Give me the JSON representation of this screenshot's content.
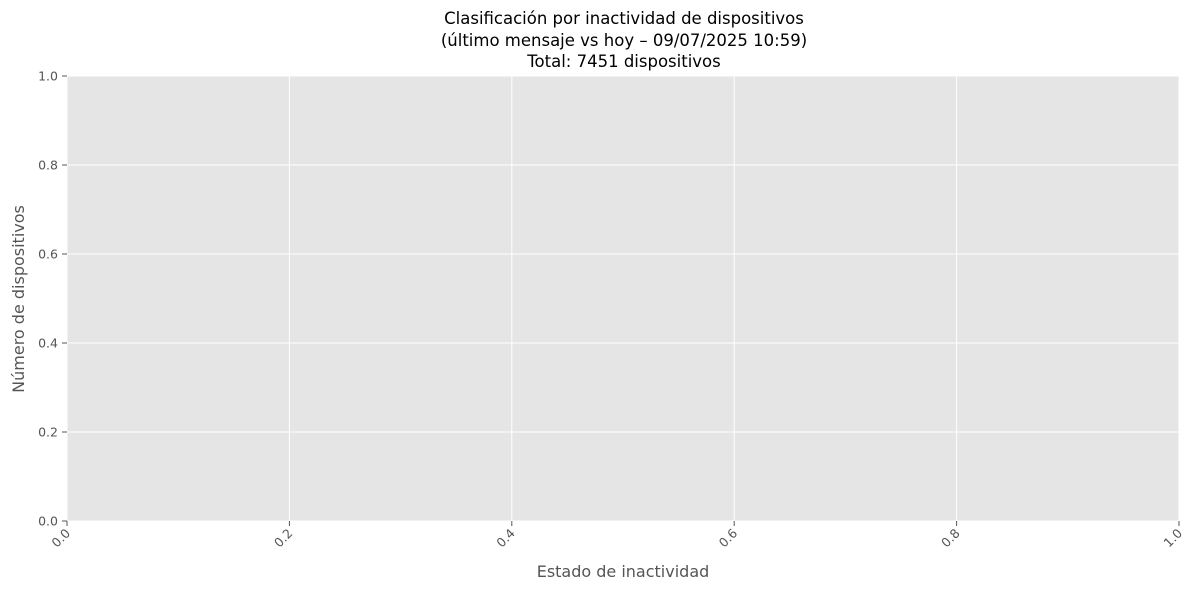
{
  "chart_data": {
    "type": "bar",
    "title_lines": [
      "Clasificación por inactividad de dispositivos",
      "(último mensaje vs hoy – 09/07/2025 10:59)",
      "Total: 7451 dispositivos"
    ],
    "xlabel": "Estado de inactividad",
    "ylabel": "Número de dispositivos",
    "xlim": [
      0,
      1
    ],
    "ylim": [
      0,
      1
    ],
    "x_ticks": [
      "0.0",
      "0.2",
      "0.4",
      "0.6",
      "0.8",
      "1.0"
    ],
    "y_ticks": [
      "0.0",
      "0.2",
      "0.4",
      "0.6",
      "0.8",
      "1.0"
    ],
    "categories": [],
    "values": [],
    "grid": true,
    "colors": {
      "plot_background": "#e5e5e5",
      "grid": "#ffffff",
      "tick_text": "#555555",
      "title_text": "#000000"
    }
  }
}
